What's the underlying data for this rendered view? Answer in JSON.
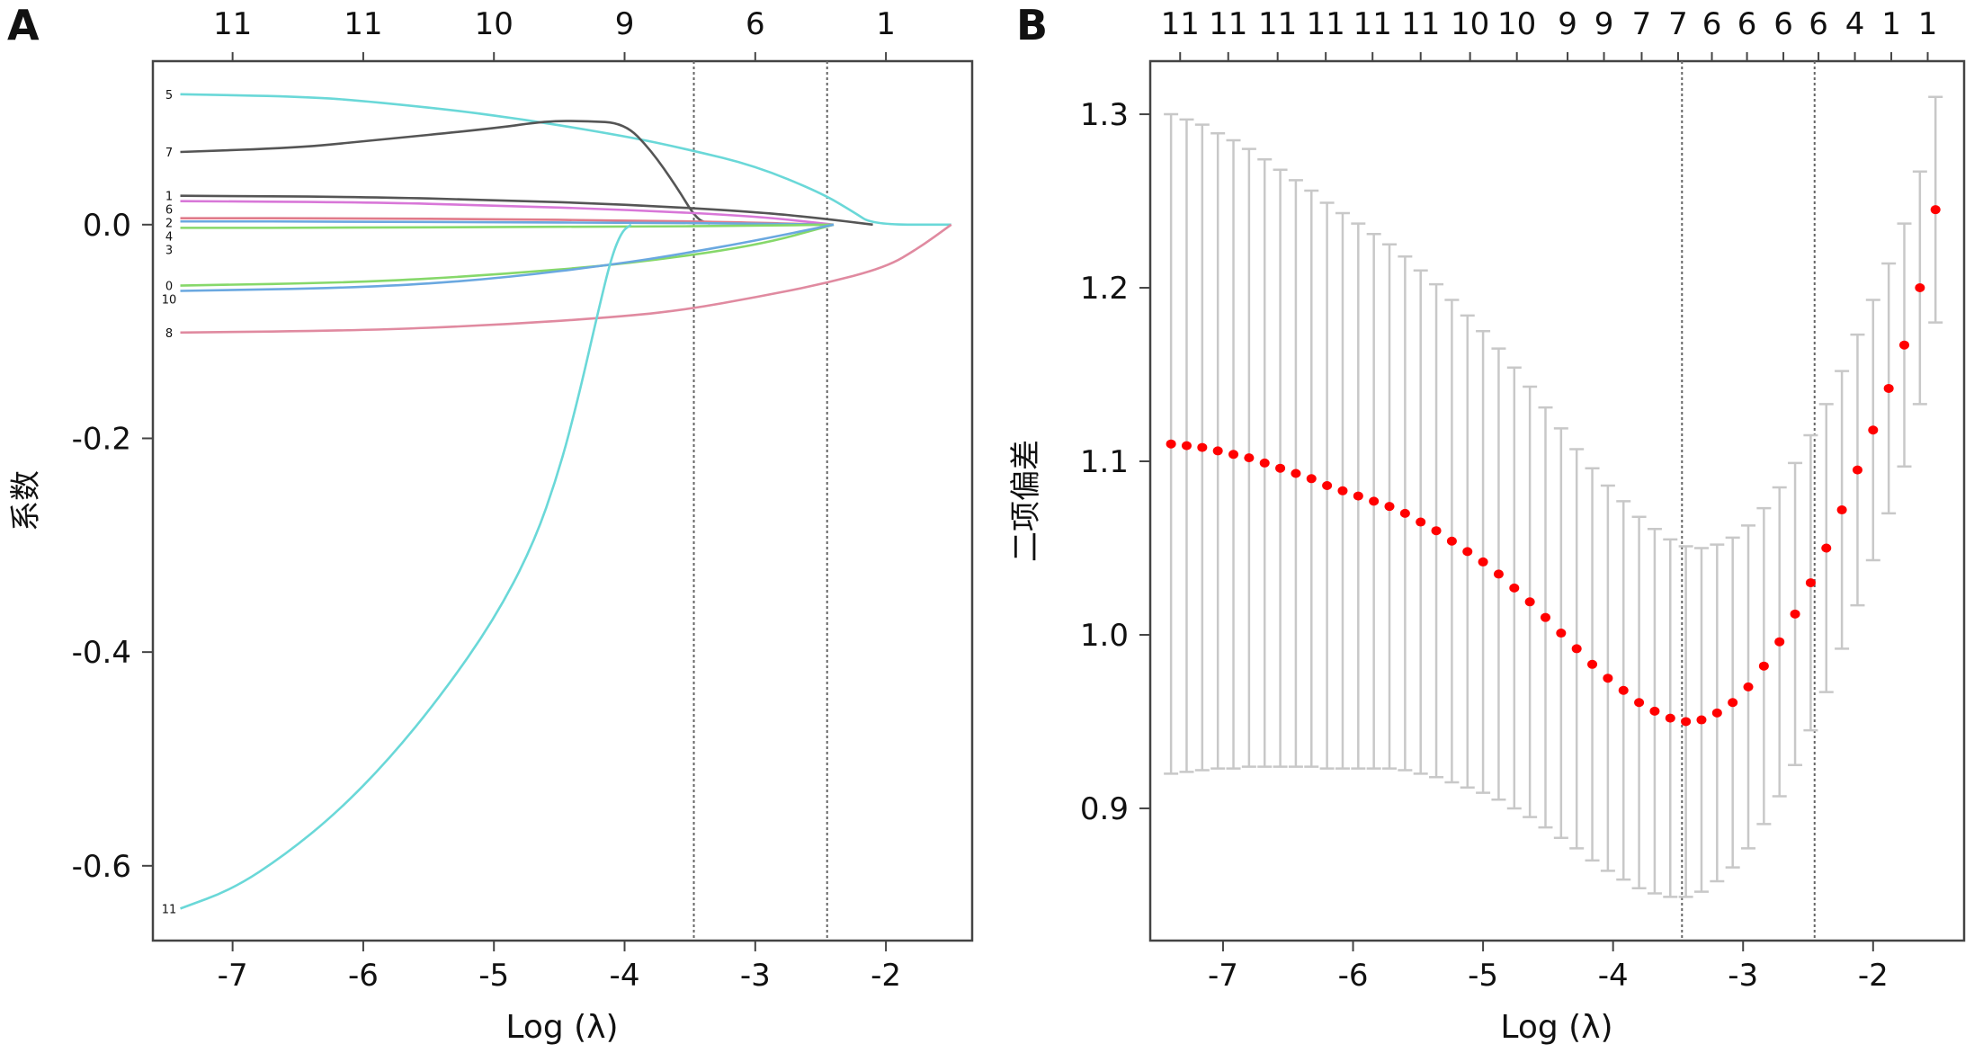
{
  "chart_data": [
    {
      "panel_label": "A",
      "type": "line",
      "title": "",
      "xlabel": "Log (λ)",
      "ylabel": "系数",
      "xlim": [
        -7.61,
        -1.34
      ],
      "ylim": [
        -0.67,
        0.153
      ],
      "x_ticks": [
        -7,
        -6,
        -5,
        -4,
        -3,
        -2
      ],
      "y_ticks": [
        0.0,
        -0.2,
        -0.4,
        -0.6
      ],
      "y_tick_labels": [
        "0.0",
        "-0.2",
        "-0.4",
        "-0.6"
      ],
      "top_axis": {
        "positions": [
          -7,
          -6,
          -5,
          -4,
          -3,
          -2
        ],
        "labels": [
          "11",
          "11",
          "10",
          "9",
          "6",
          "1"
        ]
      },
      "vlines": [
        -3.47,
        -2.45
      ],
      "series": [
        {
          "name": "5",
          "color": "#6ad8d8",
          "points": [
            [
              -7.4,
              0.122
            ],
            [
              -6.5,
              0.12
            ],
            [
              -6,
              0.116
            ],
            [
              -5,
              0.103
            ],
            [
              -4,
              0.083
            ],
            [
              -3.5,
              0.07
            ],
            [
              -3,
              0.055
            ],
            [
              -2.5,
              0.03
            ],
            [
              -2.25,
              0.012
            ],
            [
              -2.1,
              0
            ],
            [
              -1.5,
              0
            ]
          ]
        },
        {
          "name": "7",
          "color": "#555555",
          "points": [
            [
              -7.4,
              0.068
            ],
            [
              -6.5,
              0.072
            ],
            [
              -6,
              0.078
            ],
            [
              -5,
              0.09
            ],
            [
              -4.6,
              0.097
            ],
            [
              -4.3,
              0.097
            ],
            [
              -4.0,
              0.095
            ],
            [
              -3.8,
              0.07
            ],
            [
              -3.6,
              0.035
            ],
            [
              -3.45,
              0.005
            ],
            [
              -3.35,
              0.001
            ]
          ]
        },
        {
          "name": "1",
          "color": "#555555",
          "points": [
            [
              -7.4,
              0.027
            ],
            [
              -6,
              0.026
            ],
            [
              -5,
              0.023
            ],
            [
              -4,
              0.019
            ],
            [
              -3,
              0.012
            ],
            [
              -2.5,
              0.006
            ],
            [
              -2.1,
              0
            ]
          ]
        },
        {
          "name": "6",
          "color": "#d877d8",
          "points": [
            [
              -7.4,
              0.022
            ],
            [
              -6,
              0.021
            ],
            [
              -5,
              0.018
            ],
            [
              -4,
              0.014
            ],
            [
              -3,
              0.008
            ],
            [
              -2.4,
              0
            ]
          ]
        },
        {
          "name": "2",
          "color": "#e07a8a",
          "points": [
            [
              -7.4,
              0.006
            ],
            [
              -6,
              0.006
            ],
            [
              -5,
              0.005
            ],
            [
              -4,
              0.004
            ],
            [
              -3,
              0.002
            ],
            [
              -2.5,
              0
            ]
          ]
        },
        {
          "name": "4",
          "color": "#6aa8e0",
          "points": [
            [
              -7.4,
              0.003
            ],
            [
              -6,
              0.003
            ],
            [
              -5,
              0.002
            ],
            [
              -4,
              0.002
            ],
            [
              -3,
              0.001
            ],
            [
              -2.5,
              0
            ]
          ]
        },
        {
          "name": "3",
          "color": "#86d86a",
          "points": [
            [
              -7.4,
              -0.003
            ],
            [
              -6,
              -0.003
            ],
            [
              -5,
              -0.002
            ],
            [
              -4,
              -0.002
            ],
            [
              -3,
              -0.001
            ],
            [
              -2.4,
              0
            ]
          ]
        },
        {
          "name": "0",
          "color": "#86d86a",
          "points": [
            [
              -7.4,
              -0.057
            ],
            [
              -6,
              -0.054
            ],
            [
              -5,
              -0.047
            ],
            [
              -4,
              -0.037
            ],
            [
              -3,
              -0.02
            ],
            [
              -2.4,
              0
            ]
          ]
        },
        {
          "name": "10",
          "color": "#6aa8e0",
          "points": [
            [
              -7.4,
              -0.062
            ],
            [
              -6,
              -0.059
            ],
            [
              -5,
              -0.051
            ],
            [
              -4,
              -0.036
            ],
            [
              -3.5,
              -0.026
            ],
            [
              -3,
              -0.015
            ],
            [
              -2.4,
              0
            ]
          ]
        },
        {
          "name": "8",
          "color": "#e08aa0",
          "points": [
            [
              -7.4,
              -0.101
            ],
            [
              -6,
              -0.099
            ],
            [
              -5,
              -0.094
            ],
            [
              -4,
              -0.086
            ],
            [
              -3.5,
              -0.079
            ],
            [
              -3,
              -0.068
            ],
            [
              -2.5,
              -0.056
            ],
            [
              -2,
              -0.04
            ],
            [
              -1.75,
              -0.022
            ],
            [
              -1.5,
              0
            ]
          ]
        },
        {
          "name": "11",
          "color": "#6ad8d8",
          "points": [
            [
              -7.4,
              -0.64
            ],
            [
              -7.0,
              -0.622
            ],
            [
              -6.6,
              -0.59
            ],
            [
              -6.2,
              -0.55
            ],
            [
              -5.8,
              -0.5
            ],
            [
              -5.4,
              -0.44
            ],
            [
              -5.0,
              -0.37
            ],
            [
              -4.7,
              -0.3
            ],
            [
              -4.5,
              -0.23
            ],
            [
              -4.35,
              -0.16
            ],
            [
              -4.2,
              -0.08
            ],
            [
              -4.1,
              -0.03
            ],
            [
              -4.02,
              -0.006
            ],
            [
              -3.95,
              0
            ]
          ]
        }
      ]
    },
    {
      "panel_label": "B",
      "type": "scatter",
      "title": "",
      "xlabel": "Log (λ)",
      "ylabel": "二项偏差",
      "xlim": [
        -7.56,
        -1.3
      ],
      "ylim": [
        0.8238,
        1.3306
      ],
      "x_ticks": [
        -7,
        -6,
        -5,
        -4,
        -3,
        -2
      ],
      "y_ticks": [
        0.9,
        1.0,
        1.1,
        1.2,
        1.3
      ],
      "y_tick_labels": [
        "0.9",
        "1.0",
        "1.1",
        "1.2",
        "1.3"
      ],
      "top_axis": {
        "positions": [
          -7.33,
          -6.96,
          -6.58,
          -6.21,
          -5.85,
          -5.48,
          -5.1,
          -4.74,
          -4.35,
          -4.07,
          -3.78,
          -3.5,
          -3.24,
          -2.97,
          -2.69,
          -2.42,
          -2.14,
          -1.86,
          -1.58
        ],
        "labels": [
          "11",
          "11",
          "11",
          "11",
          "11",
          "11",
          "10",
          "10",
          "9",
          "9",
          "7",
          "7",
          "6",
          "6",
          "6",
          "6",
          "4",
          "1",
          "1"
        ]
      },
      "vlines": [
        -3.47,
        -2.45
      ],
      "point_color": "#ff0000",
      "errorbar_color": "#c8c8c8",
      "x_start": -7.4,
      "x_step": 0.12,
      "mean": [
        1.11,
        1.109,
        1.108,
        1.106,
        1.104,
        1.102,
        1.099,
        1.096,
        1.093,
        1.09,
        1.086,
        1.083,
        1.08,
        1.077,
        1.074,
        1.07,
        1.065,
        1.06,
        1.054,
        1.048,
        1.042,
        1.035,
        1.027,
        1.019,
        1.01,
        1.001,
        0.992,
        0.983,
        0.975,
        0.968,
        0.961,
        0.956,
        0.952,
        0.95,
        0.951,
        0.955,
        0.961,
        0.97,
        0.982,
        0.996,
        1.012,
        1.03,
        1.05,
        1.072,
        1.095,
        1.118,
        1.142,
        1.167,
        1.2,
        1.245
      ],
      "half_width": [
        0.19,
        0.188,
        0.186,
        0.183,
        0.181,
        0.178,
        0.175,
        0.172,
        0.169,
        0.166,
        0.163,
        0.16,
        0.157,
        0.154,
        0.151,
        0.148,
        0.145,
        0.142,
        0.139,
        0.136,
        0.133,
        0.13,
        0.127,
        0.124,
        0.121,
        0.118,
        0.115,
        0.113,
        0.111,
        0.109,
        0.107,
        0.105,
        0.103,
        0.101,
        0.099,
        0.097,
        0.095,
        0.093,
        0.091,
        0.089,
        0.087,
        0.085,
        0.083,
        0.08,
        0.078,
        0.075,
        0.072,
        0.07,
        0.067,
        0.065
      ]
    }
  ]
}
